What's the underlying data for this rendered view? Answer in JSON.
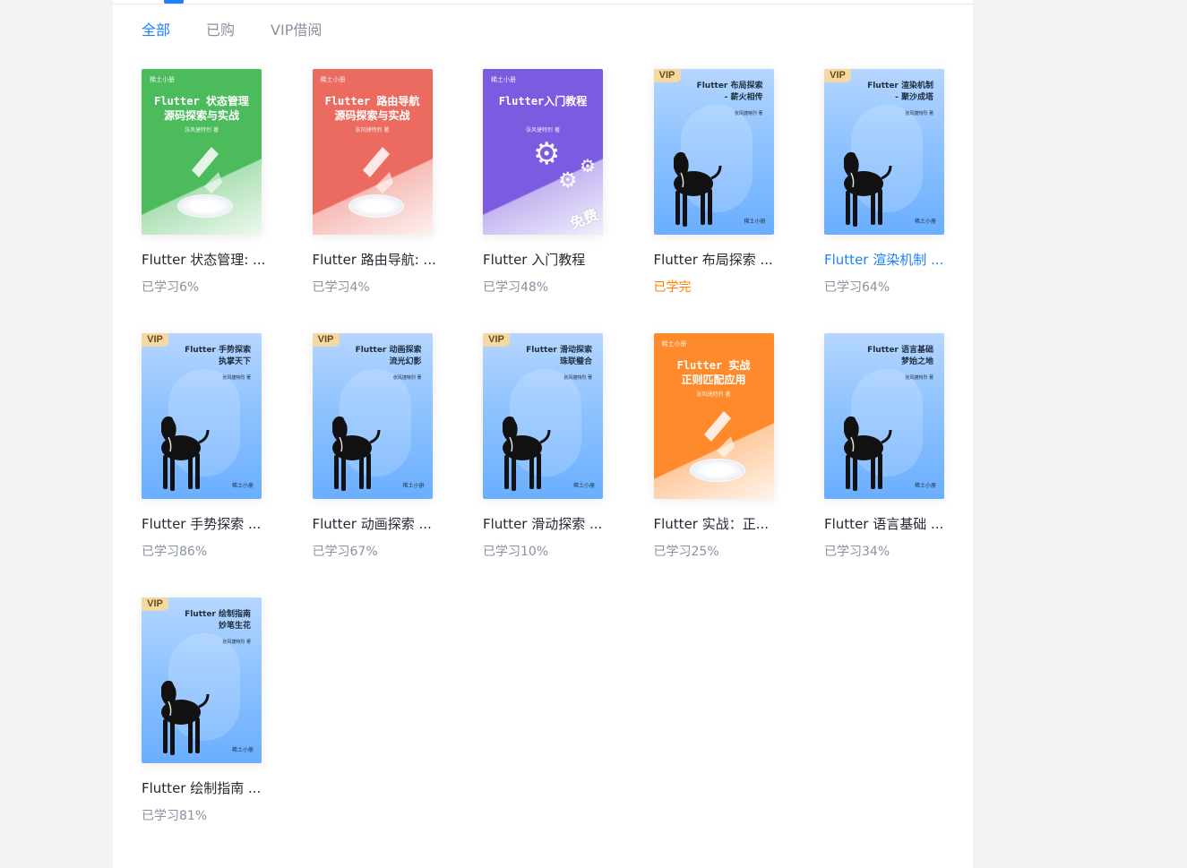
{
  "tabs": [
    {
      "label": "全部",
      "active": true
    },
    {
      "label": "已购",
      "active": false
    },
    {
      "label": "VIP借阅",
      "active": false
    }
  ],
  "books": [
    {
      "title": "Flutter 状态管理: ...",
      "progress": "已学习6%",
      "cover": {
        "kind": "flat",
        "color": "#4cbb5c",
        "title_lines": [
          "Flutter 状态管理",
          "源码探索与实战"
        ],
        "author": "张风捷特烈 著",
        "brand": "稀土小册"
      }
    },
    {
      "title": "Flutter 路由导航: ...",
      "progress": "已学习4%",
      "cover": {
        "kind": "flat",
        "color": "#ec6b60",
        "title_lines": [
          "Flutter 路由导航",
          "源码探索与实战"
        ],
        "author": "张风捷特烈 著",
        "brand": "稀土小册"
      }
    },
    {
      "title": "Flutter 入门教程",
      "progress": "已学习48%",
      "cover": {
        "kind": "free",
        "color": "#7b5ce0",
        "title_lines": [
          "Flutter入门教程"
        ],
        "author": "张风捷特烈 著",
        "brand": "稀土小册",
        "stamp": "免费"
      }
    },
    {
      "title": "Flutter 布局探索 ...",
      "progress": "已学完",
      "done": true,
      "cover": {
        "kind": "vip",
        "badge": "VIP",
        "title": "Flutter 布局探索\n- 薪火相传",
        "author": "张风捷特烈 著",
        "brand": "稀土小册"
      }
    },
    {
      "title": "Flutter 渲染机制 ...",
      "progress": "已学习64%",
      "hover": true,
      "cover": {
        "kind": "vip",
        "badge": "VIP",
        "title": "Flutter 渲染机制\n- 聚沙成塔",
        "author": "张风捷特烈 著",
        "brand": "稀土小册"
      }
    },
    {
      "title": "Flutter 手势探索 ...",
      "progress": "已学习86%",
      "cover": {
        "kind": "vip",
        "badge": "VIP",
        "title": "Flutter 手势探索\n执掌天下",
        "author": "张风捷特烈 著",
        "brand": "稀土小册"
      }
    },
    {
      "title": "Flutter 动画探索 ...",
      "progress": "已学习67%",
      "cover": {
        "kind": "vip",
        "badge": "VIP",
        "title": "Flutter 动画探索\n流光幻影",
        "author": "张风捷特烈 著",
        "brand": "稀土小册"
      }
    },
    {
      "title": "Flutter 滑动探索 ...",
      "progress": "已学习10%",
      "cover": {
        "kind": "vip",
        "badge": "VIP",
        "title": "Flutter 滑动探索\n珠联璧合",
        "author": "张风捷特烈 著",
        "brand": "稀土小册"
      }
    },
    {
      "title": "Flutter 实战：正...",
      "progress": "已学习25%",
      "cover": {
        "kind": "flat",
        "color": "#ff8a2b",
        "title_lines": [
          "Flutter 实战",
          "正则匹配应用"
        ],
        "author": "张风捷特烈 著",
        "brand": "稀土小册"
      }
    },
    {
      "title": "Flutter 语言基础 ...",
      "progress": "已学习34%",
      "cover": {
        "kind": "vip-plain",
        "title": "Flutter 语言基础\n梦始之地",
        "author": "张风捷特烈 著",
        "brand": "稀土小册"
      }
    },
    {
      "title": "Flutter 绘制指南 ...",
      "progress": "已学习81%",
      "cover": {
        "kind": "vip",
        "badge": "VIP",
        "title": "Flutter 绘制指南\n妙笔生花",
        "author": "张风捷特烈 著",
        "brand": "稀土小册"
      }
    }
  ]
}
